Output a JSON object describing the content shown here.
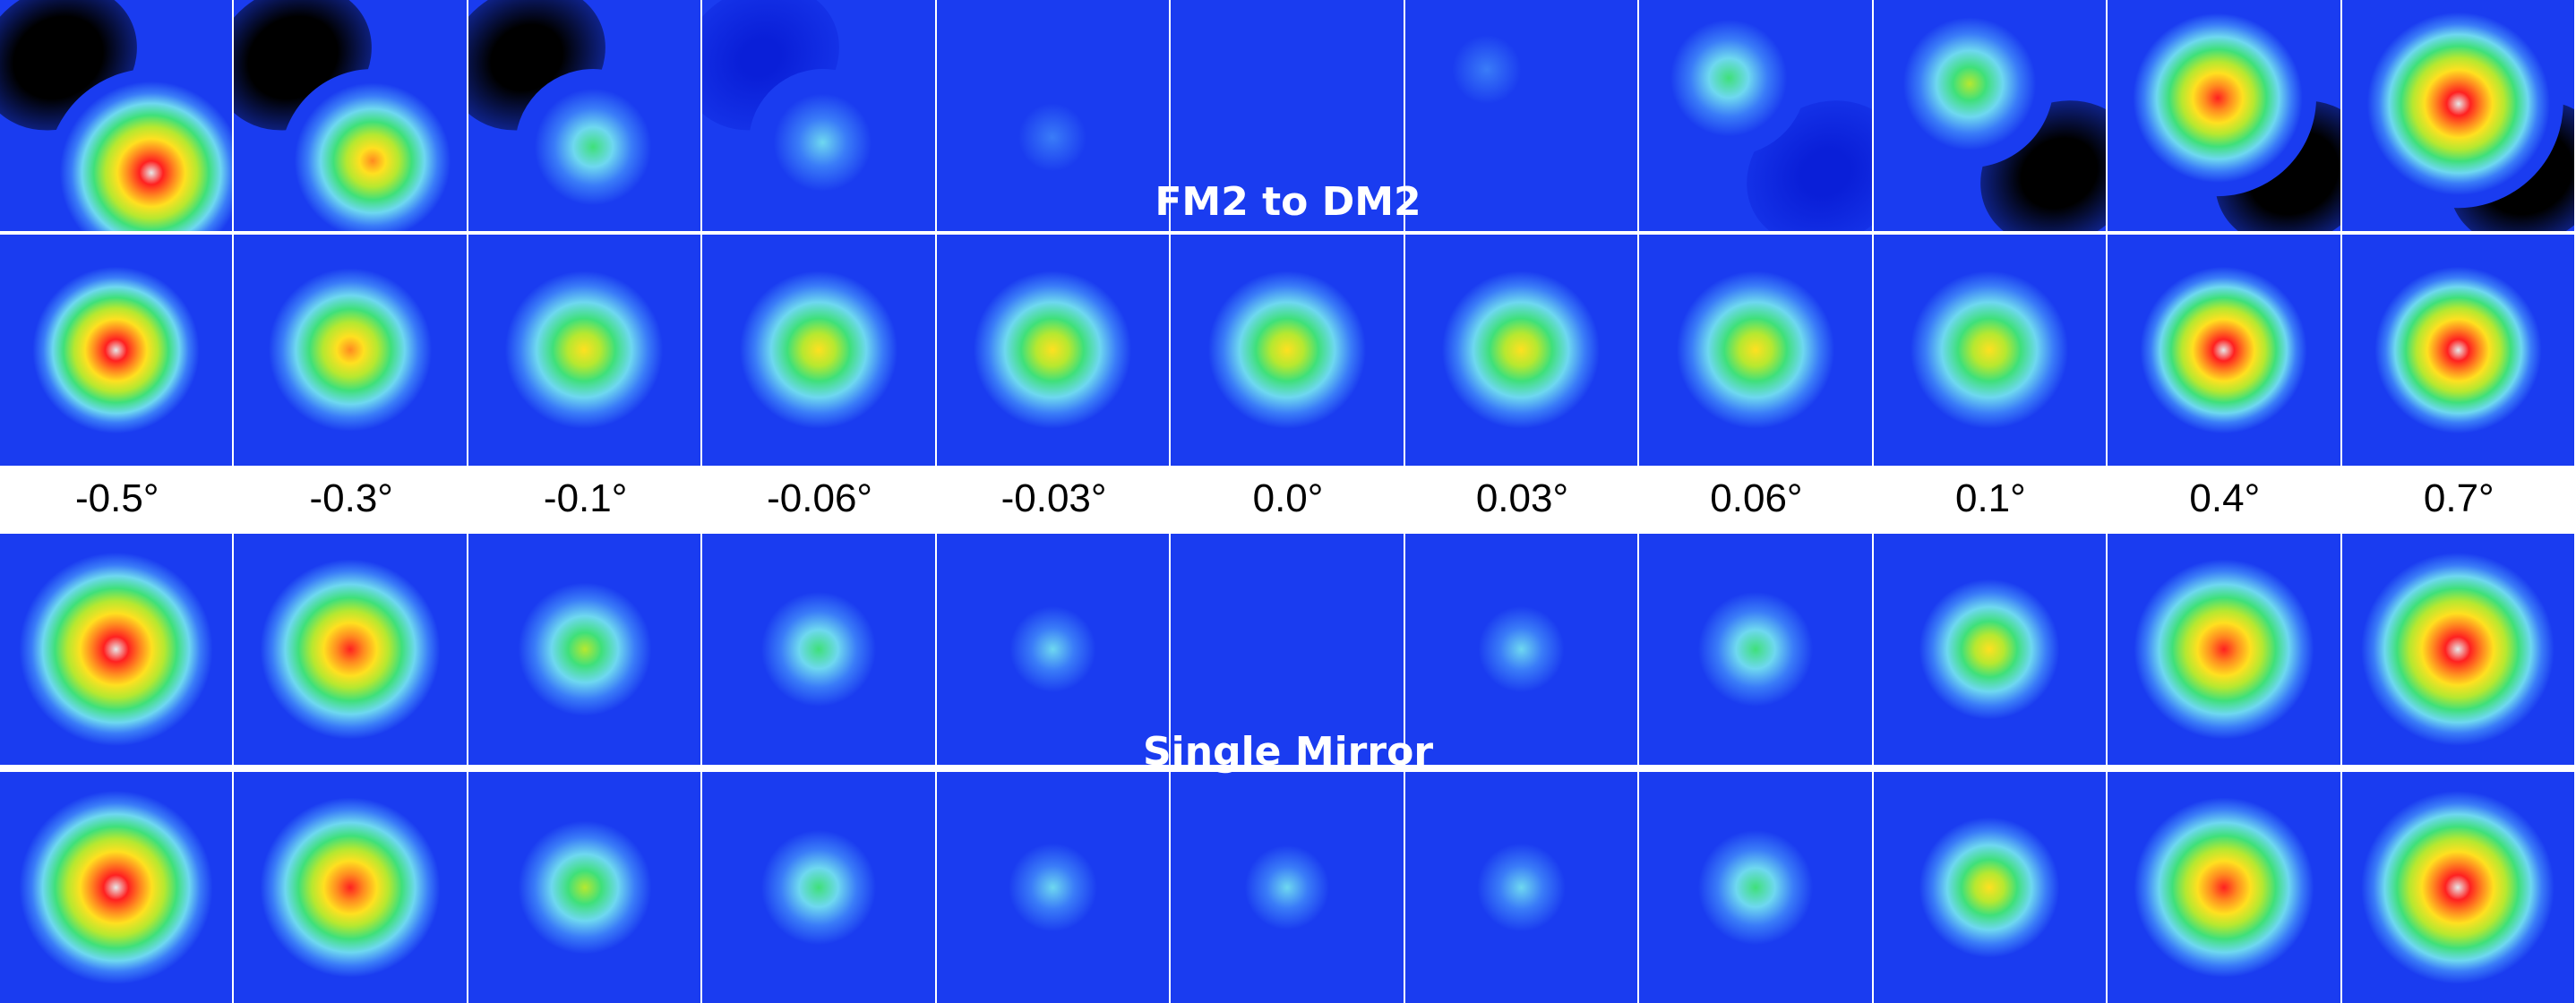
{
  "sections": {
    "top_title": "FM2 to DM2",
    "bottom_title": "Single Mirror"
  },
  "angles": [
    "-0.5°",
    "-0.3°",
    "-0.1°",
    "-0.06°",
    "-0.03°",
    "0.0°",
    "0.03°",
    "0.06°",
    "0.1°",
    "0.4°",
    "0.7°"
  ],
  "colors": {
    "background": "#1a3cf0",
    "colormap": [
      "#000000",
      "#0a1fd8",
      "#1a3cf0",
      "#3a7cf8",
      "#6ed8f0",
      "#3fe07a",
      "#b6e830",
      "#ffe020",
      "#ff8a20",
      "#ff2020",
      "#e8e8e8"
    ]
  },
  "tiles": {
    "fm2_diff": [
      {
        "neg": 1.0,
        "pos": 1.0
      },
      {
        "neg": 1.0,
        "pos": 0.7
      },
      {
        "neg": 0.8,
        "pos": 0.35
      },
      {
        "neg": 0.45,
        "pos": 0.25
      },
      {
        "neg": 0.2,
        "pos": 0.12
      },
      {
        "neg": 0.0,
        "pos": 0.0
      },
      {
        "neg": 0.25,
        "pos": 0.15
      },
      {
        "neg": 0.55,
        "pos": 0.35
      },
      {
        "neg": 0.85,
        "pos": 0.5
      },
      {
        "neg": 1.0,
        "pos": 0.85
      },
      {
        "neg": 1.0,
        "pos": 1.0
      }
    ],
    "fm2_sum": [
      1.0,
      0.8,
      0.62,
      0.62,
      0.6,
      0.6,
      0.6,
      0.62,
      0.66,
      0.95,
      1.0
    ],
    "single_a": [
      1.0,
      0.9,
      0.55,
      0.42,
      0.22,
      0.0,
      0.22,
      0.42,
      0.58,
      0.9,
      1.0
    ],
    "single_b": [
      1.0,
      0.9,
      0.55,
      0.42,
      0.25,
      0.2,
      0.25,
      0.42,
      0.58,
      0.9,
      1.0
    ]
  }
}
